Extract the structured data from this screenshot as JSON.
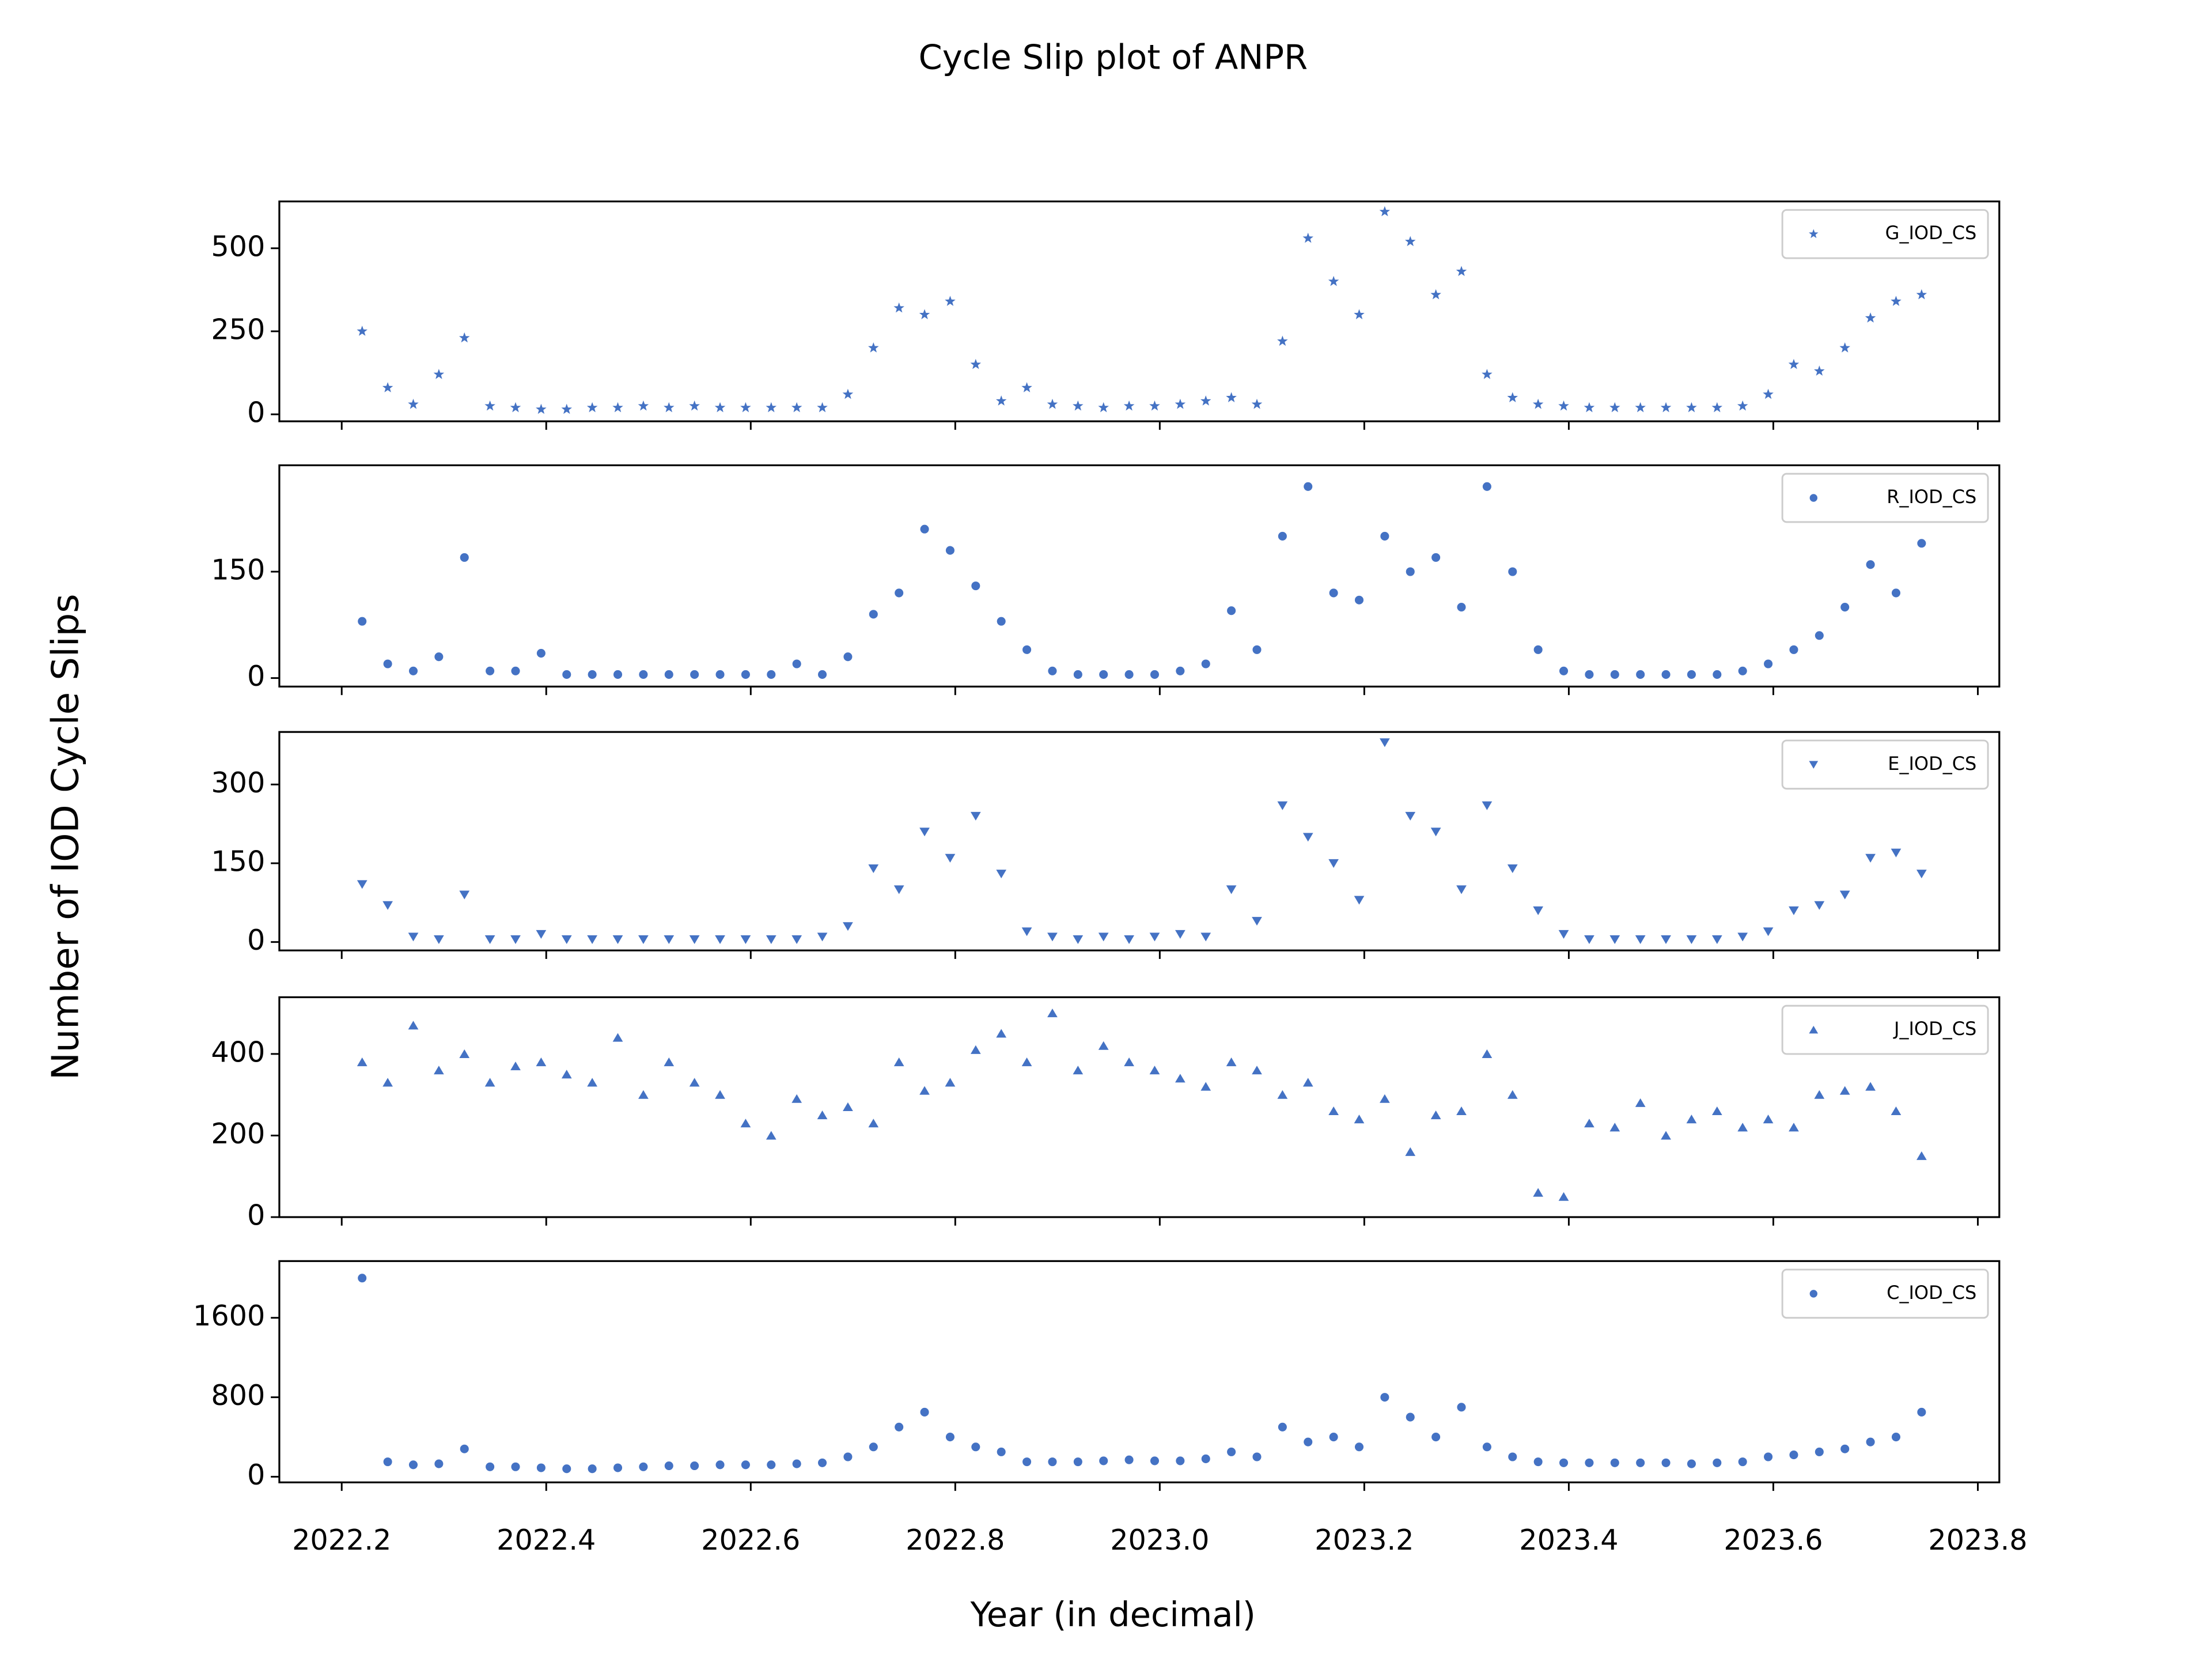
{
  "chart_data": {
    "type": "scatter",
    "title": "Cycle Slip plot of ANPR",
    "xlabel": "Year (in decimal)",
    "ylabel": "Number of IOD Cycle Slips",
    "xlim": [
      2022.139,
      2023.821
    ],
    "xticks": [
      2022.2,
      2022.4,
      2022.6,
      2022.8,
      {
        "value": 2023,
        "label": "2023.0"
      },
      2023.2,
      2023.4,
      2023.6,
      2023.8
    ],
    "legend": "upper right",
    "x": [
      2022.22,
      2022.245,
      2022.27,
      2022.295,
      2022.32,
      2022.345,
      2022.37,
      2022.395,
      2022.42,
      2022.445,
      2022.47,
      2022.495,
      2022.52,
      2022.545,
      2022.57,
      2022.595,
      2022.62,
      2022.645,
      2022.67,
      2022.695,
      2022.72,
      2022.745,
      2022.77,
      2022.795,
      2022.82,
      2022.845,
      2022.87,
      2022.895,
      2022.92,
      2022.945,
      2022.97,
      2022.995,
      2023.02,
      2023.045,
      2023.07,
      2023.095,
      2023.12,
      2023.145,
      2023.17,
      2023.195,
      2023.22,
      2023.245,
      2023.27,
      2023.295,
      2023.32,
      2023.345,
      2023.37,
      2023.395,
      2023.42,
      2023.445,
      2023.47,
      2023.495,
      2023.52,
      2023.545,
      2023.57,
      2023.595,
      2023.62,
      2023.645,
      2023.67,
      2023.695,
      2023.72,
      2023.745
    ],
    "panels": [
      {
        "ylim": [
          -21,
          641
        ],
        "yticks": [
          0,
          250,
          500
        ],
        "series": [
          {
            "name": "G_IOD_CS",
            "color": "#4472c4",
            "marker": "*",
            "values": [
              250,
              80,
              30,
              120,
              230,
              25,
              20,
              15,
              15,
              20,
              20,
              25,
              20,
              25,
              20,
              20,
              20,
              20,
              20,
              60,
              200,
              320,
              300,
              340,
              150,
              40,
              80,
              30,
              25,
              20,
              25,
              25,
              30,
              40,
              50,
              30,
              220,
              530,
              400,
              300,
              610,
              520,
              360,
              430,
              120,
              50,
              30,
              25,
              20,
              20,
              20,
              20,
              20,
              20,
              25,
              60,
              150,
              130,
              200,
              290,
              340,
              360
            ]
          }
        ]
      },
      {
        "ylim": [
          -12,
          300
        ],
        "yticks": [
          0,
          150
        ],
        "series": [
          {
            "name": "R_IOD_CS",
            "color": "#4472c4",
            "marker": "o",
            "values": [
              80,
              20,
              10,
              30,
              170,
              10,
              10,
              35,
              5,
              5,
              5,
              5,
              5,
              5,
              5,
              5,
              5,
              20,
              5,
              30,
              90,
              120,
              210,
              180,
              130,
              80,
              40,
              10,
              5,
              5,
              5,
              5,
              10,
              20,
              95,
              40,
              200,
              270,
              120,
              110,
              200,
              150,
              170,
              100,
              270,
              150,
              40,
              10,
              5,
              5,
              5,
              5,
              5,
              5,
              10,
              20,
              40,
              60,
              100,
              160,
              120,
              190
            ]
          }
        ]
      },
      {
        "ylim": [
          -16,
          400
        ],
        "yticks": [
          0,
          150,
          300
        ],
        "series": [
          {
            "name": "E_IOD_CS",
            "color": "#4472c4",
            "marker": "v",
            "values": [
              110,
              70,
              10,
              5,
              90,
              5,
              5,
              15,
              5,
              5,
              5,
              5,
              5,
              5,
              5,
              5,
              5,
              5,
              10,
              30,
              140,
              100,
              210,
              160,
              240,
              130,
              20,
              10,
              5,
              10,
              5,
              10,
              15,
              10,
              100,
              40,
              260,
              200,
              150,
              80,
              380,
              240,
              210,
              100,
              260,
              140,
              60,
              15,
              5,
              5,
              5,
              5,
              5,
              5,
              10,
              20,
              60,
              70,
              90,
              160,
              170,
              130
            ]
          }
        ]
      },
      {
        "ylim": [
          0,
          539
        ],
        "yticks": [
          0,
          200,
          400
        ],
        "series": [
          {
            "name": "J_IOD_CS",
            "color": "#4472c4",
            "marker": "^",
            "values": [
              380,
              330,
              470,
              360,
              400,
              330,
              370,
              380,
              350,
              330,
              440,
              300,
              380,
              330,
              300,
              230,
              200,
              290,
              250,
              270,
              230,
              380,
              310,
              330,
              410,
              450,
              380,
              500,
              360,
              420,
              380,
              360,
              340,
              320,
              380,
              360,
              300,
              330,
              260,
              240,
              290,
              160,
              250,
              260,
              400,
              300,
              60,
              50,
              230,
              220,
              280,
              200,
              240,
              260,
              220,
              240,
              220,
              300,
              310,
              320,
              260,
              150
            ]
          }
        ]
      },
      {
        "ylim": [
          -57,
          2171
        ],
        "yticks": [
          0,
          800,
          1600
        ],
        "series": [
          {
            "name": "C_IOD_CS",
            "color": "#4472c4",
            "marker": "o",
            "values": [
              2000,
              150,
              120,
              130,
              280,
              100,
              100,
              90,
              80,
              80,
              90,
              100,
              110,
              110,
              120,
              120,
              120,
              130,
              140,
              200,
              300,
              500,
              650,
              400,
              300,
              250,
              150,
              150,
              150,
              160,
              170,
              160,
              160,
              180,
              250,
              200,
              500,
              350,
              400,
              300,
              800,
              600,
              400,
              700,
              300,
              200,
              150,
              140,
              140,
              140,
              140,
              140,
              130,
              140,
              150,
              200,
              220,
              250,
              280,
              350,
              400,
              650
            ]
          }
        ]
      }
    ]
  }
}
